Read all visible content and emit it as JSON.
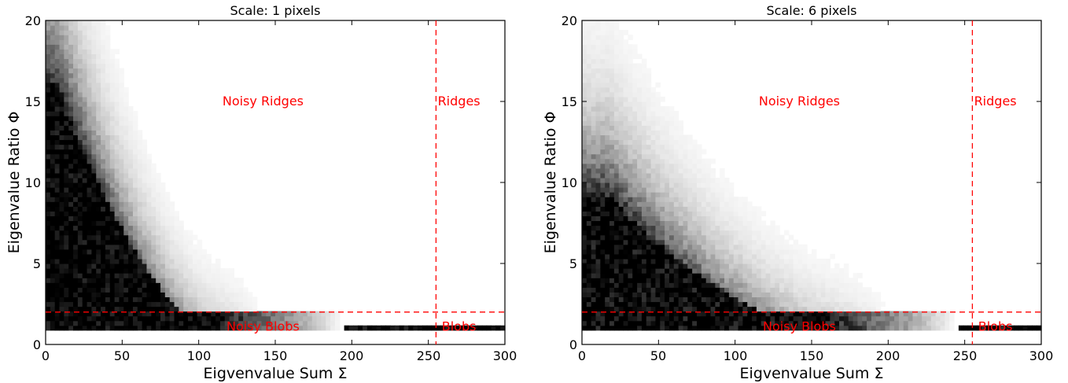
{
  "chart_data": [
    {
      "type": "heatmap",
      "title": "Scale: 1 pixels",
      "xlabel": "Eigvenvalue Sum Σ",
      "ylabel": "Eigenvalue Ratio Φ",
      "xlim": [
        0,
        300
      ],
      "ylim": [
        0,
        20
      ],
      "xticks": [
        "0",
        "50",
        "100",
        "150",
        "200",
        "250",
        "300"
      ],
      "yticks": [
        "0",
        "5",
        "10",
        "15",
        "20"
      ],
      "colormap": "gray_r",
      "grid": false,
      "thresholds": {
        "sum": 255,
        "ratio": 2,
        "color": "#ff0000"
      },
      "region_color": "#ff0000",
      "regions": [
        {
          "label": "Noisy Ridges",
          "x": 142,
          "y": 15
        },
        {
          "label": "Ridges",
          "x": 270,
          "y": 15
        },
        {
          "label": "Noisy Blobs",
          "x": 142,
          "y": 1.1
        },
        {
          "label": "Blobs",
          "x": 270,
          "y": 1.1
        }
      ],
      "density": {
        "x0": 8,
        "peak": 15.5,
        "extent": 108,
        "floor": 1.1,
        "tail": 195,
        "noise": 0.33
      }
    },
    {
      "type": "heatmap",
      "title": "Scale: 6 pixels",
      "xlabel": "Eigvenvalue Sum Σ",
      "ylabel": "Eigenvalue Ratio Φ",
      "xlim": [
        0,
        300
      ],
      "ylim": [
        0,
        20
      ],
      "xticks": [
        "0",
        "50",
        "100",
        "150",
        "200",
        "250",
        "300"
      ],
      "yticks": [
        "0",
        "5",
        "10",
        "15",
        "20"
      ],
      "colormap": "gray_r",
      "grid": false,
      "thresholds": {
        "sum": 255,
        "ratio": 2,
        "color": "#ff0000"
      },
      "region_color": "#ff0000",
      "regions": [
        {
          "label": "Noisy Ridges",
          "x": 142,
          "y": 15
        },
        {
          "label": "Ridges",
          "x": 270,
          "y": 15
        },
        {
          "label": "Noisy Blobs",
          "x": 142,
          "y": 1.1
        },
        {
          "label": "Blobs",
          "x": 270,
          "y": 1.1
        }
      ],
      "density": {
        "x0": 18,
        "peak": 9.0,
        "extent": 155,
        "floor": 1.1,
        "tail": 245,
        "noise": 0.42
      }
    }
  ]
}
